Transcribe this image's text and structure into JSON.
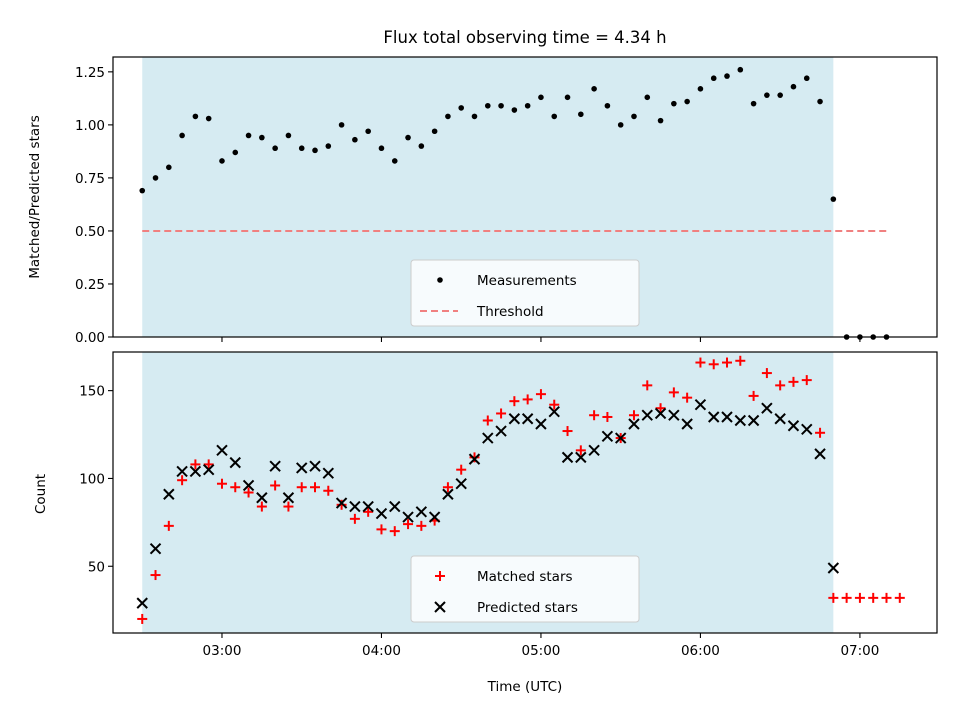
{
  "figure": {
    "title": "Flux total observing time = 4.34 h",
    "xlabel": "Time (UTC)"
  },
  "chart_data": [
    {
      "type": "scatter",
      "ylabel": "Matched/Predicted stars",
      "xlim": [
        "02:19",
        "07:29"
      ],
      "ylim": [
        0,
        1.32
      ],
      "yticks": [
        0.0,
        0.25,
        0.5,
        0.75,
        1.0,
        1.25
      ],
      "ytick_labels": [
        "0.00",
        "0.25",
        "0.50",
        "0.75",
        "1.00",
        "1.25"
      ],
      "grid": false,
      "legend_position": "bottom-center",
      "observing_window": {
        "start": "02:30",
        "end": "06:50",
        "color": "#add8e6"
      },
      "series": [
        {
          "name": "Measurements",
          "marker": "dot",
          "color": "#000000",
          "x": [
            "02:30",
            "02:35",
            "02:40",
            "02:45",
            "02:50",
            "02:55",
            "03:00",
            "03:05",
            "03:10",
            "03:15",
            "03:20",
            "03:25",
            "03:30",
            "03:35",
            "03:40",
            "03:45",
            "03:50",
            "03:55",
            "04:00",
            "04:05",
            "04:10",
            "04:15",
            "04:20",
            "04:25",
            "04:30",
            "04:35",
            "04:40",
            "04:45",
            "04:50",
            "04:55",
            "05:00",
            "05:05",
            "05:10",
            "05:15",
            "05:20",
            "05:25",
            "05:30",
            "05:35",
            "05:40",
            "05:45",
            "05:50",
            "05:55",
            "06:00",
            "06:05",
            "06:10",
            "06:15",
            "06:20",
            "06:25",
            "06:30",
            "06:35",
            "06:40",
            "06:45",
            "06:50",
            "06:55",
            "07:00",
            "07:05",
            "07:10"
          ],
          "y": [
            0.69,
            0.75,
            0.8,
            0.95,
            1.04,
            1.03,
            0.83,
            0.87,
            0.95,
            0.94,
            0.89,
            0.95,
            0.89,
            0.88,
            0.9,
            1.0,
            0.93,
            0.97,
            0.89,
            0.83,
            0.94,
            0.9,
            0.97,
            1.04,
            1.08,
            1.04,
            1.09,
            1.09,
            1.07,
            1.09,
            1.13,
            1.04,
            1.13,
            1.05,
            1.17,
            1.09,
            1.0,
            1.04,
            1.13,
            1.02,
            1.1,
            1.11,
            1.17,
            1.22,
            1.23,
            1.26,
            1.1,
            1.14,
            1.14,
            1.18,
            1.22,
            1.11,
            0.65,
            0.0,
            0.0,
            0.0,
            0.0
          ]
        },
        {
          "name": "Threshold",
          "style": "dashed",
          "color": "#f08080",
          "x": [
            "02:30",
            "07:10"
          ],
          "y": [
            0.5,
            0.5
          ]
        }
      ]
    },
    {
      "type": "scatter",
      "ylabel": "Count",
      "xlim": [
        "02:19",
        "07:29"
      ],
      "ylim": [
        12,
        172
      ],
      "yticks": [
        50,
        100,
        150
      ],
      "ytick_labels": [
        "50",
        "100",
        "150"
      ],
      "xticks": [
        "03:00",
        "04:00",
        "05:00",
        "06:00",
        "07:00"
      ],
      "xtick_labels": [
        "03:00",
        "04:00",
        "05:00",
        "06:00",
        "07:00"
      ],
      "grid": false,
      "legend_position": "bottom-center",
      "observing_window": {
        "start": "02:30",
        "end": "06:50",
        "color": "#add8e6"
      },
      "series": [
        {
          "name": "Matched stars",
          "marker": "plus",
          "color": "#ff0000",
          "x": [
            "02:30",
            "02:35",
            "02:40",
            "02:45",
            "02:50",
            "02:55",
            "03:00",
            "03:05",
            "03:10",
            "03:15",
            "03:20",
            "03:25",
            "03:30",
            "03:35",
            "03:40",
            "03:45",
            "03:50",
            "03:55",
            "04:00",
            "04:05",
            "04:10",
            "04:15",
            "04:20",
            "04:25",
            "04:30",
            "04:35",
            "04:40",
            "04:45",
            "04:50",
            "04:55",
            "05:00",
            "05:05",
            "05:10",
            "05:15",
            "05:20",
            "05:25",
            "05:30",
            "05:35",
            "05:40",
            "05:45",
            "05:50",
            "05:55",
            "06:00",
            "06:05",
            "06:10",
            "06:15",
            "06:20",
            "06:25",
            "06:30",
            "06:35",
            "06:40",
            "06:45",
            "06:50",
            "06:55",
            "07:00",
            "07:05",
            "07:10",
            "07:15"
          ],
          "y": [
            20,
            45,
            73,
            99,
            108,
            108,
            97,
            95,
            92,
            84,
            96,
            84,
            95,
            95,
            93,
            85,
            77,
            81,
            71,
            70,
            74,
            73,
            76,
            95,
            105,
            112,
            133,
            137,
            144,
            145,
            148,
            142,
            127,
            116,
            136,
            135,
            123,
            136,
            153,
            140,
            149,
            146,
            166,
            165,
            166,
            167,
            147,
            160,
            153,
            155,
            156,
            126,
            32,
            32,
            32,
            32,
            32,
            32
          ]
        },
        {
          "name": "Predicted stars",
          "marker": "x",
          "color": "#000000",
          "x": [
            "02:30",
            "02:35",
            "02:40",
            "02:45",
            "02:50",
            "02:55",
            "03:00",
            "03:05",
            "03:10",
            "03:15",
            "03:20",
            "03:25",
            "03:30",
            "03:35",
            "03:40",
            "03:45",
            "03:50",
            "03:55",
            "04:00",
            "04:05",
            "04:10",
            "04:15",
            "04:20",
            "04:25",
            "04:30",
            "04:35",
            "04:40",
            "04:45",
            "04:50",
            "04:55",
            "05:00",
            "05:05",
            "05:10",
            "05:15",
            "05:20",
            "05:25",
            "05:30",
            "05:35",
            "05:40",
            "05:45",
            "05:50",
            "05:55",
            "06:00",
            "06:05",
            "06:10",
            "06:15",
            "06:20",
            "06:25",
            "06:30",
            "06:35",
            "06:40",
            "06:45",
            "06:50"
          ],
          "y": [
            29,
            60,
            91,
            104,
            104,
            105,
            116,
            109,
            96,
            89,
            107,
            89,
            106,
            107,
            103,
            86,
            84,
            84,
            80,
            84,
            78,
            81,
            78,
            91,
            97,
            111,
            123,
            127,
            134,
            134,
            131,
            138,
            112,
            112,
            116,
            124,
            123,
            131,
            136,
            137,
            136,
            131,
            142,
            135,
            135,
            133,
            133,
            140,
            134,
            130,
            128,
            114,
            49
          ]
        }
      ]
    }
  ]
}
